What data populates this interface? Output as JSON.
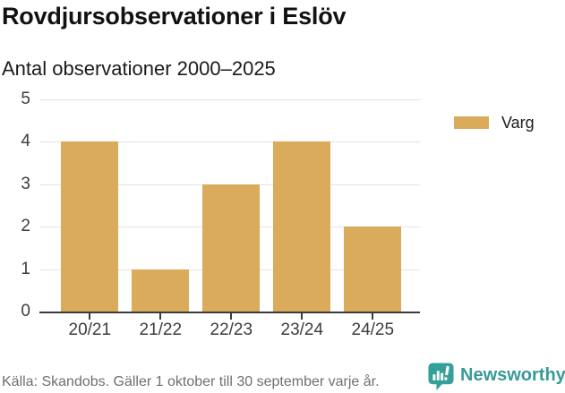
{
  "header": {
    "title": "Rovdjursobservationer i Eslöv",
    "subtitle": "Antal observationer 2000–2025"
  },
  "chart_data": {
    "type": "bar",
    "categories": [
      "20/21",
      "21/22",
      "22/23",
      "23/24",
      "24/25"
    ],
    "series": [
      {
        "name": "Varg",
        "color": "#d9ab5b",
        "values": [
          4,
          1,
          3,
          4,
          2
        ]
      }
    ],
    "title": "Rovdjursobservationer i Eslöv",
    "subtitle": "Antal observationer 2000–2025",
    "xlabel": "",
    "ylabel": "",
    "ylim": [
      0,
      5
    ],
    "yticks": [
      0,
      1,
      2,
      3,
      4,
      5
    ],
    "grid": true,
    "legend_position": "right"
  },
  "legend": {
    "items": [
      {
        "label": "Varg",
        "color": "#d9ab5b"
      }
    ]
  },
  "footer": {
    "source": "Källa: Skandobs. Gäller 1 oktober till 30 september varje år.",
    "brand": "Newsworthy",
    "brand_icon": "speech-bubble-bar-chart-icon"
  },
  "colors": {
    "bar": "#d9ab5b",
    "gridline": "#e3e3e3",
    "axis": "#3b3b3b",
    "tick_text": "#3d3d3d",
    "title_text": "#121212",
    "source_text": "#6f6f6f",
    "brand_teal": "#379b96"
  }
}
